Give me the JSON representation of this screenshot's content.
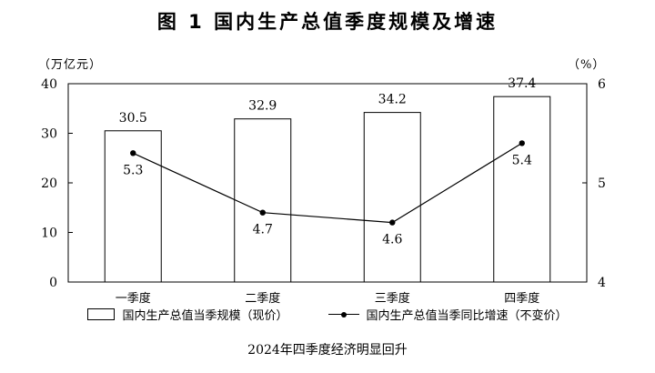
{
  "title": "图 1   国内生产总值季度规模及增速",
  "units": {
    "left": "（万亿元）",
    "right": "（%）"
  },
  "caption": "2024年四季度经济明显回升",
  "legend": [
    {
      "label": "国内生产总值当季规模（现价）"
    },
    {
      "label": "国内生产总值当季同比增速（不变价）"
    }
  ],
  "chart_data": {
    "type": "bar",
    "categories": [
      "一季度",
      "二季度",
      "三季度",
      "四季度"
    ],
    "series": [
      {
        "name": "国内生产总值当季规模（现价）",
        "type": "bar",
        "axis": "left",
        "values": [
          30.5,
          32.9,
          34.2,
          37.4
        ]
      },
      {
        "name": "国内生产总值当季同比增速（不变价）",
        "type": "line",
        "axis": "right",
        "values": [
          5.3,
          4.7,
          4.6,
          5.4
        ]
      }
    ],
    "y_left": {
      "range": [
        0,
        40
      ],
      "ticks": [
        0,
        10,
        20,
        30,
        40
      ],
      "unit": "万亿元"
    },
    "y_right": {
      "range": [
        4,
        6
      ],
      "ticks": [
        4,
        5,
        6
      ],
      "unit": "%"
    },
    "colors": {
      "bar_fill": "#ffffff",
      "bar_stroke": "#000000",
      "line": "#000000"
    },
    "grid": false,
    "legend_position": "bottom"
  }
}
